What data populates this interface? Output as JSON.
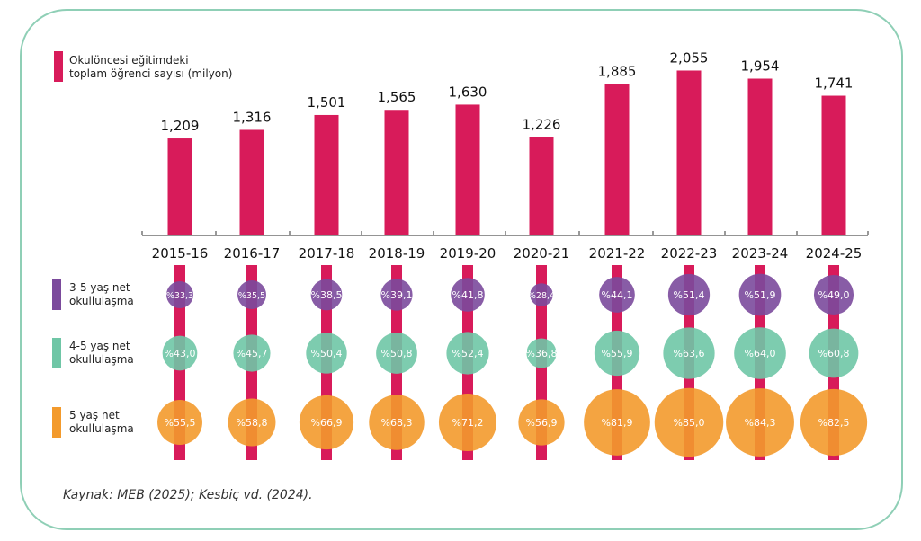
{
  "chart_data": {
    "type": "bar",
    "categories": [
      "2015-16",
      "2016-17",
      "2017-18",
      "2018-19",
      "2019-20",
      "2020-21",
      "2021-22",
      "2022-23",
      "2023-24",
      "2024-25"
    ],
    "bar_series": {
      "name": "Okulöncesi eğitimdeki toplam öğrenci sayısı (milyon)",
      "name_lines": [
        "Okulöncesi eğitimdeki",
        "toplam öğrenci sayısı (milyon)"
      ],
      "color": "#d81b5a",
      "values": [
        1.209,
        1.316,
        1.501,
        1.565,
        1.63,
        1.226,
        1.885,
        2.055,
        1.954,
        1.741
      ],
      "labels": [
        "1,209",
        "1,316",
        "1,501",
        "1,565",
        "1,630",
        "1,226",
        "1,885",
        "2,055",
        "1,954",
        "1,741"
      ]
    },
    "bubble_series": [
      {
        "name_lines": [
          "3-5 yaş net",
          "okullulaşma"
        ],
        "color": "#7b4a9c",
        "values": [
          33.3,
          35.5,
          38.5,
          39.1,
          41.8,
          28.4,
          44.1,
          51.4,
          51.9,
          49.0
        ],
        "labels": [
          "%33,3",
          "%35,5",
          "%38,5",
          "%39,1",
          "%41,8",
          "%28,4",
          "%44,1",
          "%51,4",
          "%51,9",
          "%49,0"
        ]
      },
      {
        "name_lines": [
          "4-5 yaş net",
          "okullulaşma"
        ],
        "color": "#6fc6a6",
        "values": [
          43.0,
          45.7,
          50.4,
          50.8,
          52.4,
          36.8,
          55.9,
          63.6,
          64.0,
          60.8
        ],
        "labels": [
          "%43,0",
          "%45,7",
          "%50,4",
          "%50,8",
          "%52,4",
          "%36,8",
          "%55,9",
          "%63,6",
          "%64,0",
          "%60,8"
        ]
      },
      {
        "name_lines": [
          "5 yaş net",
          "okullulaşma"
        ],
        "color": "#f39a2c",
        "values": [
          55.5,
          58.8,
          66.9,
          68.3,
          71.2,
          56.9,
          81.9,
          85.0,
          84.3,
          82.5
        ],
        "labels": [
          "%55,5",
          "%58,8",
          "%66,9",
          "%68,3",
          "%71,2",
          "%56,9",
          "%81,9",
          "%85,0",
          "%84,3",
          "%82,5"
        ]
      }
    ],
    "legend_placement": "left",
    "grid": false
  },
  "caption": "Kaynak: MEB (2025); Kesbiç vd. (2024)."
}
